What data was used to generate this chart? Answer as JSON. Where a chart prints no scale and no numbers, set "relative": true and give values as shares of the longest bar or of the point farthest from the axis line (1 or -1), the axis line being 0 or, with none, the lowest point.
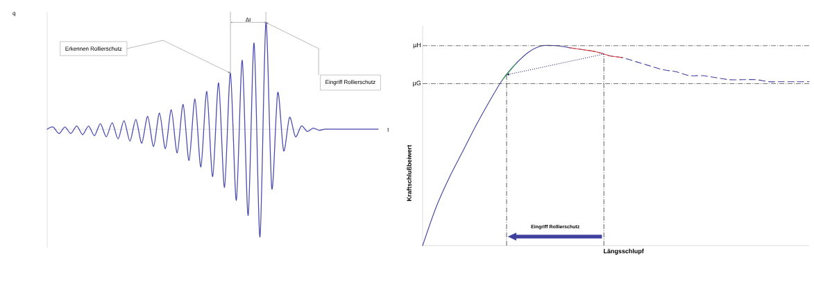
{
  "chart_data": [
    {
      "type": "line",
      "xlabel": "t",
      "ylabel": "q",
      "relative": true,
      "categories": [
        null,
        null,
        null,
        null,
        null,
        null,
        null,
        null,
        null,
        null,
        null,
        null,
        null,
        null,
        null,
        null,
        null,
        null,
        null,
        null,
        null,
        null,
        null,
        null,
        null,
        null,
        null,
        null,
        null,
        null,
        null,
        null,
        null,
        null,
        null,
        null,
        null,
        null,
        null,
        null,
        null,
        null,
        null,
        null,
        null,
        null,
        null,
        null,
        null,
        null,
        null,
        null,
        null,
        null,
        null,
        null,
        null
      ],
      "series": [
        {
          "color": "#4b4bb0",
          "values": [
            0,
            0.02,
            -0.04,
            0.02,
            -0.04,
            0.03,
            -0.05,
            0.03,
            -0.06,
            0.05,
            -0.07,
            0.06,
            -0.09,
            0.08,
            -0.11,
            0.09,
            -0.13,
            0.12,
            -0.16,
            0.15,
            -0.18,
            0.18,
            -0.22,
            0.23,
            -0.29,
            0.28,
            -0.35,
            0.35,
            -0.44,
            0.43,
            -0.54,
            0.52,
            -0.66,
            0.64,
            -0.8,
            0.8,
            -1,
            0.99,
            -0.55,
            0.34,
            -0.2,
            0.11,
            -0.07,
            0.03,
            -0.02,
            0.01,
            -0.01,
            0,
            0,
            0,
            0,
            0,
            0,
            0,
            0,
            0,
            0
          ]
        }
      ],
      "annotations": [
        "Erkennen Rollierschutz",
        "Eingriff Rollierschutz",
        "Δt"
      ]
    },
    {
      "type": "line",
      "xlabel": "Längsschlupf",
      "ylabel": "Kraftschlußbeiwert",
      "relative": true,
      "categories": [
        null,
        null,
        null,
        null,
        null,
        null,
        null,
        null,
        null,
        null,
        null,
        null,
        null,
        null,
        null,
        null,
        null,
        null,
        null,
        null,
        null,
        null,
        null,
        null,
        null,
        null,
        null,
        null,
        null,
        null
      ],
      "series": [
        {
          "color": "#3f3f9e",
          "values": [
            0,
            0.19,
            0.34,
            0.47,
            0.6,
            0.72,
            0.83,
            0.91,
            0.97,
            1.0,
            1.0,
            0.99,
            null,
            null,
            null,
            null,
            null,
            null,
            null,
            null,
            null,
            null,
            null,
            null,
            null,
            null,
            null,
            null,
            null,
            null
          ]
        },
        {
          "color": "#3f3f9e",
          "line_style": "dashed",
          "values": [
            null,
            null,
            null,
            null,
            null,
            null,
            null,
            null,
            null,
            null,
            null,
            0.99,
            0.98,
            0.97,
            0.95,
            0.94,
            0.92,
            0.9,
            0.88,
            0.87,
            0.85,
            0.85,
            0.84,
            0.83,
            0.83,
            0.83,
            0.82,
            0.82,
            0.82,
            0.82
          ]
        },
        {
          "color": "#3cb34a",
          "values": [
            null,
            null,
            null,
            null,
            null,
            null,
            0.83,
            0.91,
            null,
            null,
            null,
            null,
            null,
            null,
            null,
            null,
            null,
            null,
            null,
            null,
            null,
            null,
            null,
            null,
            null,
            null,
            null,
            null,
            null,
            null
          ]
        },
        {
          "color": "#e0443e",
          "values": [
            null,
            null,
            null,
            null,
            null,
            null,
            null,
            null,
            null,
            null,
            null,
            0.99,
            0.98,
            0.97,
            0.95,
            0.94,
            null,
            null,
            null,
            null,
            null,
            null,
            null,
            null,
            null,
            null,
            null,
            null,
            null,
            null
          ]
        }
      ],
      "ref_lines": [
        {
          "axis": "y",
          "value": 1,
          "label": "µH"
        },
        {
          "axis": "y",
          "value": 0.81,
          "label": "µG"
        }
      ],
      "annotations": [
        "Eingriff Rollierschutz"
      ]
    }
  ]
}
